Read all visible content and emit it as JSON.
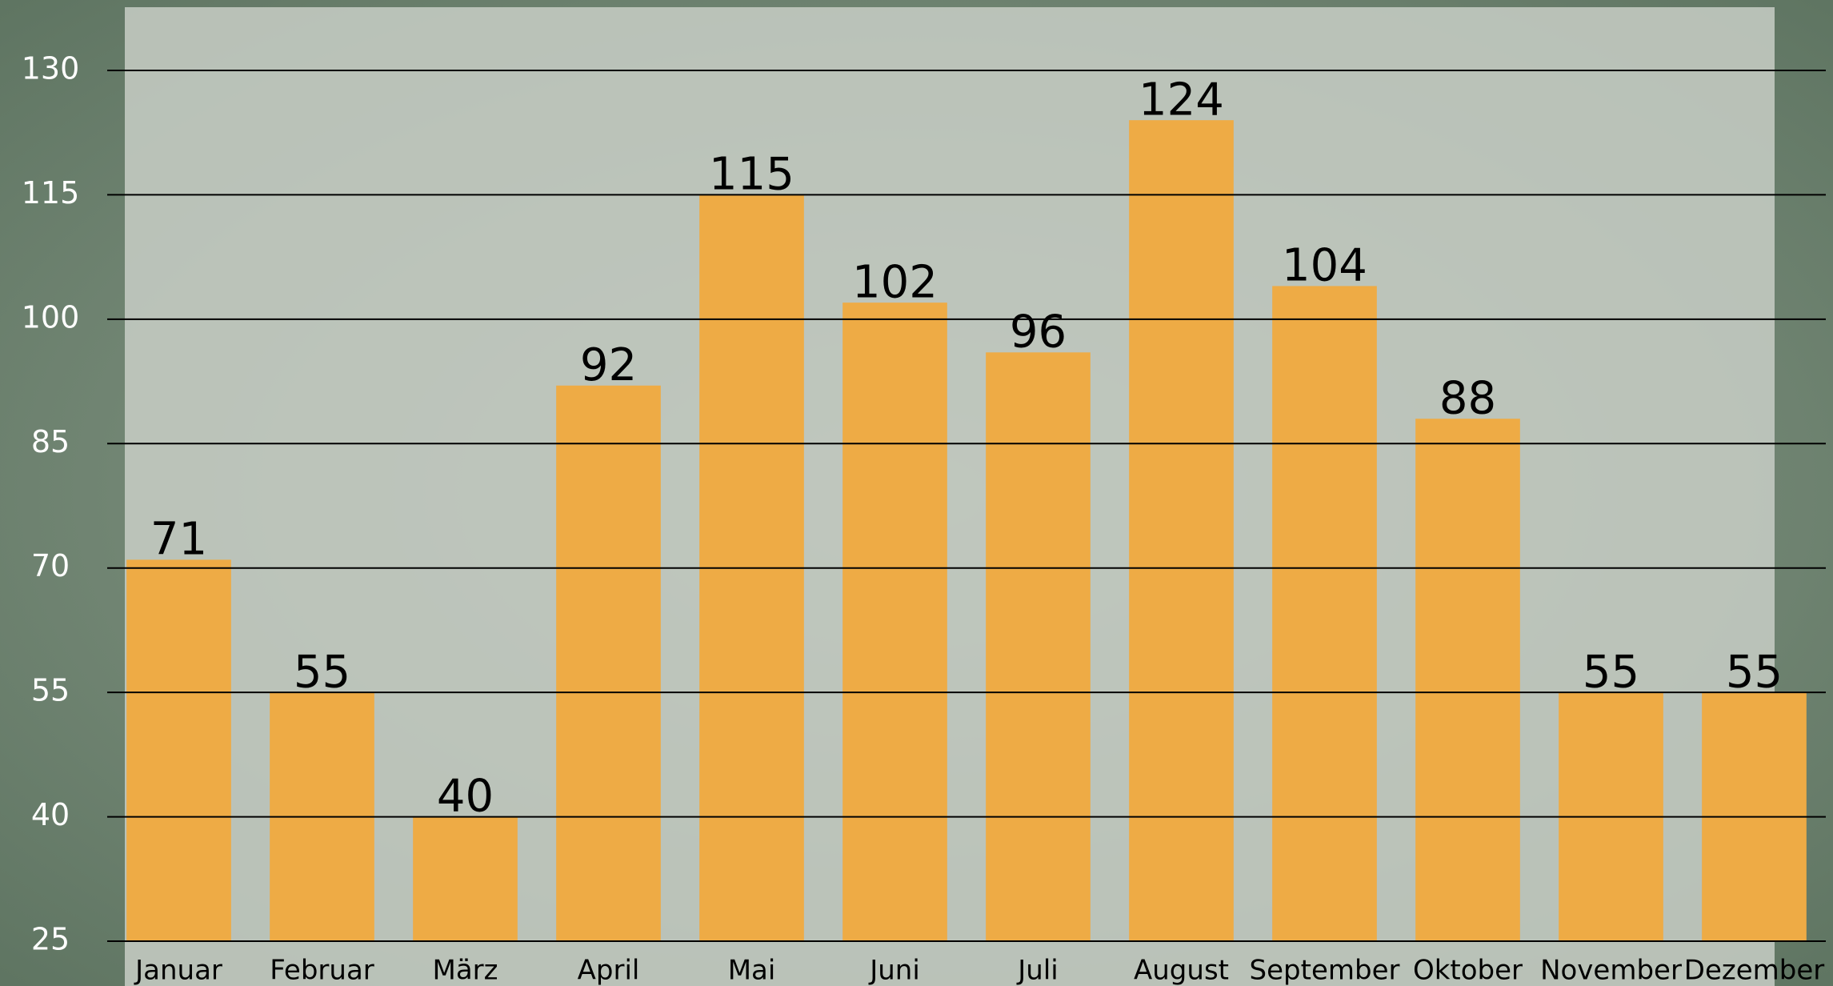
{
  "chart_data": {
    "type": "bar",
    "categories": [
      "Januar",
      "Februar",
      "März",
      "April",
      "Mai",
      "Juni",
      "Juli",
      "August",
      "September",
      "Oktober",
      "November",
      "Dezember"
    ],
    "values": [
      71,
      55,
      40,
      92,
      115,
      102,
      96,
      124,
      104,
      88,
      55,
      55
    ],
    "color": "#eeab45",
    "ylim": [
      25,
      130
    ],
    "yticks": [
      25,
      40,
      55,
      70,
      85,
      100,
      115,
      130
    ],
    "grid": true
  }
}
